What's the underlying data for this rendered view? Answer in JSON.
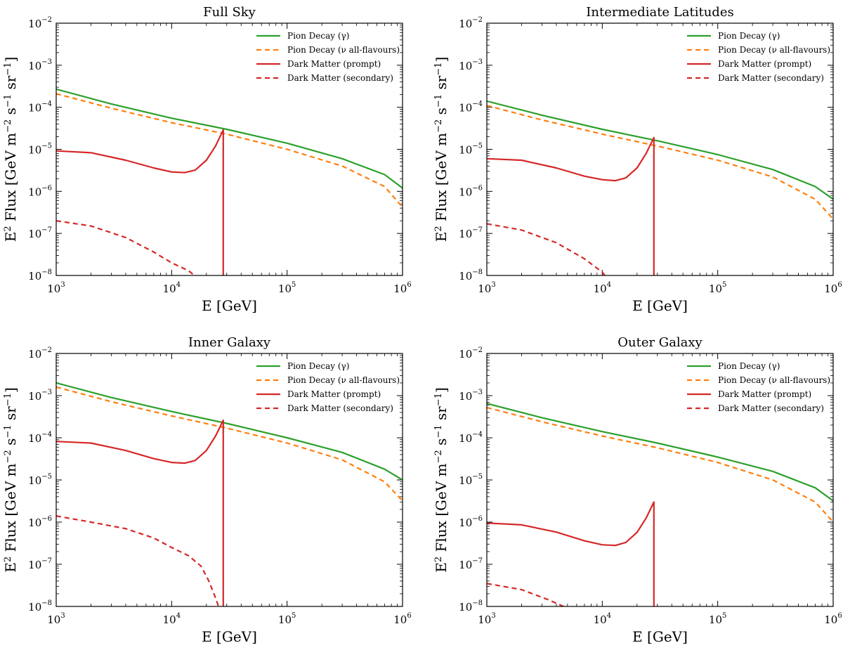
{
  "chart_data": [
    {
      "type": "line",
      "title": "Full Sky",
      "xlabel": "E [GeV]",
      "ylabel": "E2 Flux [GeV m−2 s−1 sr−1]",
      "xscale": "log",
      "yscale": "log",
      "xlim": [
        1000,
        1000000
      ],
      "ylim": [
        1e-08,
        0.01
      ],
      "legend_position": "top-right",
      "series": [
        {
          "name": "Pion Decay (γ)",
          "color": "#2ca02c",
          "dash": "solid",
          "x": [
            1000,
            3000,
            10000,
            30000,
            100000,
            300000,
            700000,
            1000000
          ],
          "y": [
            0.00027,
            0.00012,
            5.5e-05,
            3e-05,
            1.4e-05,
            6e-06,
            2.5e-06,
            1.2e-06
          ]
        },
        {
          "name": "Pion Decay (ν all-flavours)",
          "color": "#ff7f0e",
          "dash": "dashed",
          "x": [
            1000,
            3000,
            10000,
            30000,
            100000,
            300000,
            700000,
            1000000
          ],
          "y": [
            0.00021,
            9.5e-05,
            4.3e-05,
            2.3e-05,
            1e-05,
            4e-06,
            1.3e-06,
            4.2e-07
          ]
        },
        {
          "name": "Dark Matter (prompt)",
          "color": "#d62728",
          "dash": "solid",
          "x": [
            1000,
            2000,
            4000,
            7000,
            10000,
            13000,
            16000,
            20000,
            24000,
            28000,
            28000
          ],
          "y": [
            9.2e-06,
            8.3e-06,
            5.5e-06,
            3.6e-06,
            2.9e-06,
            2.8e-06,
            3.2e-06,
            5.5e-06,
            1.2e-05,
            2.9e-05,
            1e-08
          ]
        },
        {
          "name": "Dark Matter (secondary)",
          "color": "#d62728",
          "dash": "dashed",
          "x": [
            1000,
            2000,
            4000,
            7000,
            10000,
            14000,
            17000
          ],
          "y": [
            2e-07,
            1.5e-07,
            8e-08,
            3.6e-08,
            2e-08,
            1.3e-08,
            8.5e-09
          ]
        }
      ]
    },
    {
      "type": "line",
      "title": "Intermediate Latitudes",
      "xlabel": "E [GeV]",
      "ylabel": "E2 Flux [GeV m−2 s−1 sr−1]",
      "xscale": "log",
      "yscale": "log",
      "xlim": [
        1000,
        1000000
      ],
      "ylim": [
        1e-08,
        0.01
      ],
      "legend_position": "top-right",
      "series": [
        {
          "name": "Pion Decay (γ)",
          "color": "#2ca02c",
          "dash": "solid",
          "x": [
            1000,
            3000,
            10000,
            30000,
            100000,
            300000,
            700000,
            1000000
          ],
          "y": [
            0.00014,
            6.5e-05,
            3e-05,
            1.6e-05,
            7.5e-06,
            3.3e-06,
            1.3e-06,
            6.5e-07
          ]
        },
        {
          "name": "Pion Decay (ν all-flavours)",
          "color": "#ff7f0e",
          "dash": "dashed",
          "x": [
            1000,
            3000,
            10000,
            30000,
            100000,
            300000,
            700000,
            1000000
          ],
          "y": [
            0.00011,
            5e-05,
            2.3e-05,
            1.2e-05,
            5.5e-06,
            2.2e-06,
            6.5e-07,
            2.2e-07
          ]
        },
        {
          "name": "Dark Matter (prompt)",
          "color": "#d62728",
          "dash": "solid",
          "x": [
            1000,
            2000,
            4000,
            7000,
            10000,
            13000,
            16000,
            20000,
            24000,
            28000,
            28000
          ],
          "y": [
            6e-06,
            5.5e-06,
            3.6e-06,
            2.3e-06,
            1.9e-06,
            1.8e-06,
            2.1e-06,
            3.6e-06,
            8e-06,
            1.9e-05,
            1e-08
          ]
        },
        {
          "name": "Dark Matter (secondary)",
          "color": "#d62728",
          "dash": "dashed",
          "x": [
            1000,
            2000,
            4000,
            7000,
            10000,
            11000
          ],
          "y": [
            1.7e-07,
            1.2e-07,
            6e-08,
            2.5e-08,
            1.2e-08,
            8.5e-09
          ]
        }
      ]
    },
    {
      "type": "line",
      "title": "Inner Galaxy",
      "xlabel": "E [GeV]",
      "ylabel": "E2 Flux [GeV m−2 s−1 sr−1]",
      "xscale": "log",
      "yscale": "log",
      "xlim": [
        1000,
        1000000
      ],
      "ylim": [
        1e-08,
        0.01
      ],
      "legend_position": "top-right",
      "series": [
        {
          "name": "Pion Decay (γ)",
          "color": "#2ca02c",
          "dash": "solid",
          "x": [
            1000,
            3000,
            10000,
            30000,
            100000,
            300000,
            700000,
            1000000
          ],
          "y": [
            0.002,
            0.0009,
            0.00042,
            0.00022,
            0.0001,
            4.5e-05,
            1.8e-05,
            1e-05
          ]
        },
        {
          "name": "Pion Decay (ν all-flavours)",
          "color": "#ff7f0e",
          "dash": "dashed",
          "x": [
            1000,
            3000,
            10000,
            30000,
            100000,
            300000,
            700000,
            1000000
          ],
          "y": [
            0.0016,
            0.00072,
            0.00033,
            0.00017,
            7.5e-05,
            3e-05,
            9e-06,
            3.2e-06
          ]
        },
        {
          "name": "Dark Matter (prompt)",
          "color": "#d62728",
          "dash": "solid",
          "x": [
            1000,
            2000,
            4000,
            7000,
            10000,
            13000,
            16000,
            20000,
            24000,
            28000,
            28000
          ],
          "y": [
            8.2e-05,
            7.5e-05,
            5e-05,
            3.2e-05,
            2.6e-05,
            2.5e-05,
            2.9e-05,
            5e-05,
            0.00011,
            0.00026,
            1e-08
          ]
        },
        {
          "name": "Dark Matter (secondary)",
          "color": "#d62728",
          "dash": "dashed",
          "x": [
            1000,
            2000,
            4000,
            7000,
            10000,
            14000,
            18000,
            21000,
            24000,
            26000
          ],
          "y": [
            1.4e-06,
            1e-06,
            7e-07,
            4.2e-07,
            2.5e-07,
            1.6e-07,
            9e-08,
            4e-08,
            1.6e-08,
            8.5e-09
          ]
        }
      ]
    },
    {
      "type": "line",
      "title": "Outer Galaxy",
      "xlabel": "E [GeV]",
      "ylabel": "E2 Flux [GeV m−2 s−1 sr−1]",
      "xscale": "log",
      "yscale": "log",
      "xlim": [
        1000,
        1000000
      ],
      "ylim": [
        1e-08,
        0.01
      ],
      "legend_position": "top-right",
      "series": [
        {
          "name": "Pion Decay (γ)",
          "color": "#2ca02c",
          "dash": "solid",
          "x": [
            1000,
            3000,
            10000,
            30000,
            100000,
            300000,
            700000,
            1000000
          ],
          "y": [
            0.00065,
            0.0003,
            0.00014,
            7.5e-05,
            3.5e-05,
            1.6e-05,
            6.5e-06,
            3.2e-06
          ]
        },
        {
          "name": "Pion Decay (ν all-flavours)",
          "color": "#ff7f0e",
          "dash": "dashed",
          "x": [
            1000,
            3000,
            10000,
            30000,
            100000,
            300000,
            700000,
            1000000
          ],
          "y": [
            0.00052,
            0.00024,
            0.00011,
            5.8e-05,
            2.6e-05,
            1e-05,
            3e-06,
            1e-06
          ]
        },
        {
          "name": "Dark Matter (prompt)",
          "color": "#d62728",
          "dash": "solid",
          "x": [
            1000,
            2000,
            4000,
            7000,
            10000,
            13000,
            16000,
            20000,
            24000,
            28000,
            28000
          ],
          "y": [
            9.5e-07,
            8.6e-07,
            5.8e-07,
            3.6e-07,
            2.9e-07,
            2.8e-07,
            3.3e-07,
            5.7e-07,
            1.25e-06,
            3e-06,
            1e-08
          ]
        },
        {
          "name": "Dark Matter (secondary)",
          "color": "#d62728",
          "dash": "dashed",
          "x": [
            1000,
            2000,
            3500,
            4800
          ],
          "y": [
            3.5e-08,
            2.5e-08,
            1.4e-08,
            9.5e-09
          ]
        }
      ]
    }
  ]
}
